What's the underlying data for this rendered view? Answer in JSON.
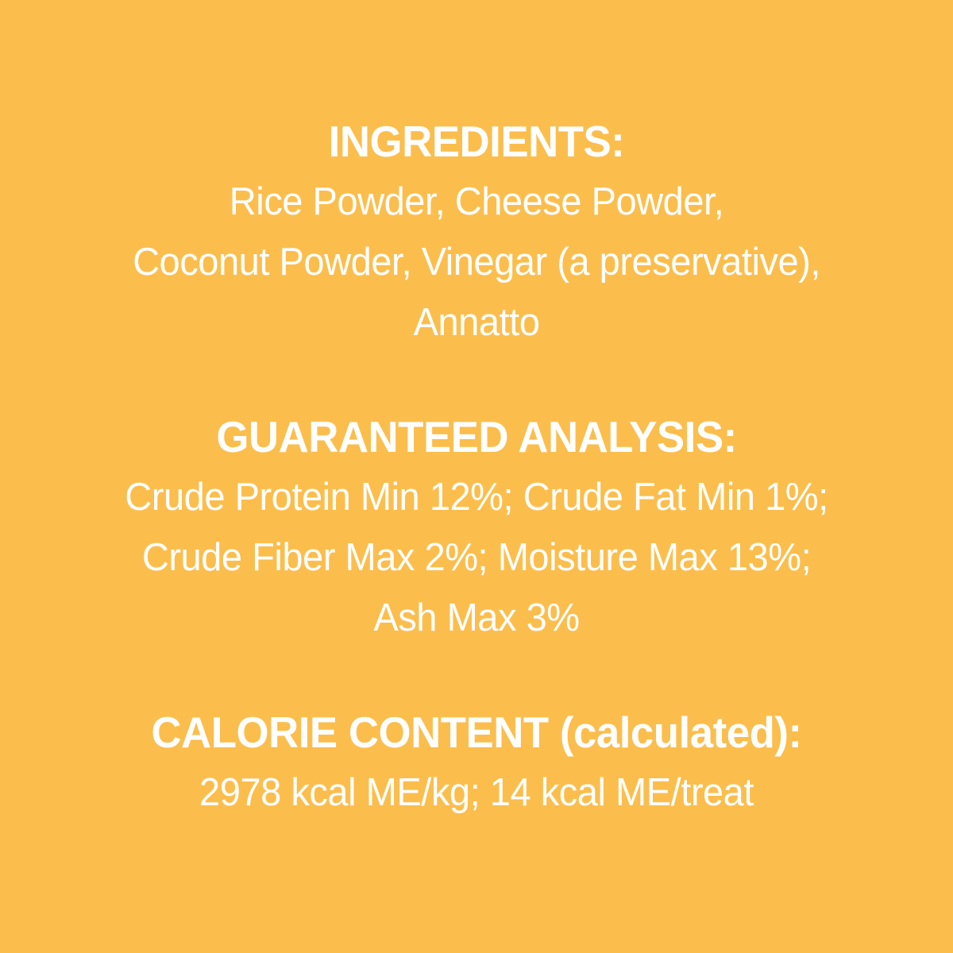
{
  "page": {
    "background_color": "#FBBE4D",
    "text_color": "#FFFFFF"
  },
  "sections": [
    {
      "heading": "INGREDIENTS:",
      "lines": [
        "Rice Powder, Cheese Powder,",
        "Coconut Powder, Vinegar (a preservative),",
        "Annatto"
      ]
    },
    {
      "heading": "GUARANTEED ANALYSIS:",
      "lines": [
        "Crude Protein Min 12%; Crude Fat Min 1%;",
        "Crude Fiber Max 2%; Moisture Max 13%;",
        "Ash Max 3%"
      ]
    },
    {
      "heading": "CALORIE CONTENT (calculated):",
      "lines": [
        "2978 kcal ME/kg; 14 kcal ME/treat"
      ]
    }
  ]
}
